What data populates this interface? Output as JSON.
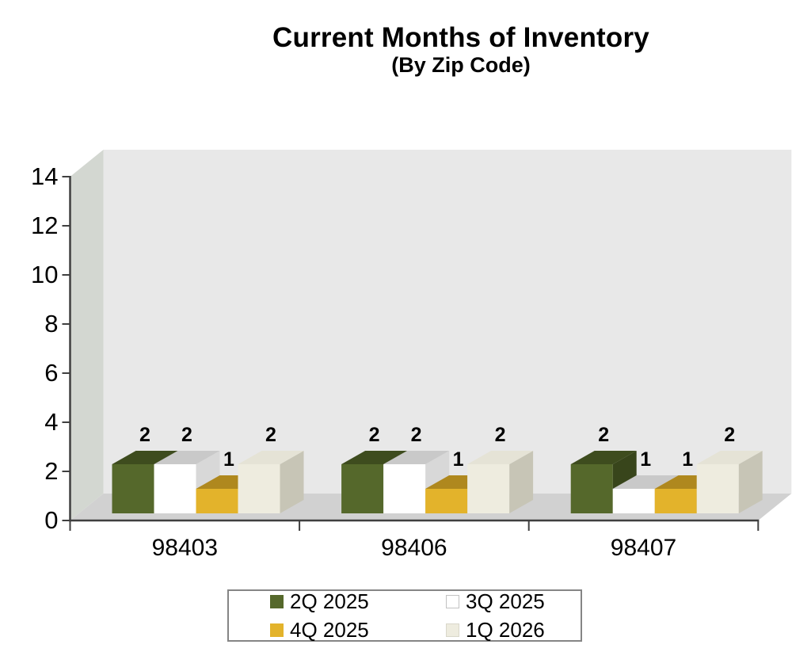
{
  "chart_data": {
    "type": "bar",
    "style": "3d-clustered-cubes",
    "title": "Current Months of Inventory",
    "subtitle": "(By Zip Code)",
    "categories": [
      "98403",
      "98406",
      "98407"
    ],
    "series": [
      {
        "name": "2Q 2025",
        "values": [
          2,
          2,
          2
        ],
        "color": "#55682b",
        "top_color": "#3e4c1e",
        "side_color": "#38451b",
        "swatch_border": "#55682b"
      },
      {
        "name": "3Q 2025",
        "values": [
          2,
          2,
          1
        ],
        "color": "#ffffff",
        "top_color": "#c9c9c9",
        "side_color": "#d8d8d8",
        "swatch_border": "#c2c2c2"
      },
      {
        "name": "4Q 2025",
        "values": [
          1,
          1,
          1
        ],
        "color": "#e3b32b",
        "top_color": "#af881e",
        "side_color": "#97751b",
        "swatch_border": "#e3b32b"
      },
      {
        "name": "1Q 2026",
        "values": [
          2,
          2,
          2
        ],
        "color": "#eeecdf",
        "top_color": "#e5e3d6",
        "side_color": "#c7c5b6",
        "swatch_border": "#d9d7ca"
      }
    ],
    "ylim": [
      0,
      14
    ],
    "yticks": [
      0,
      2,
      4,
      6,
      8,
      10,
      12,
      14
    ],
    "value_labels": true,
    "grid": false,
    "legend_position": "bottom",
    "wall_color": "#e8e8e8",
    "side_wall_color": "#d3d7d1",
    "floor_color": "#d1d1d1",
    "axis_color": "#3f3f3f",
    "text_color": "#000000"
  }
}
